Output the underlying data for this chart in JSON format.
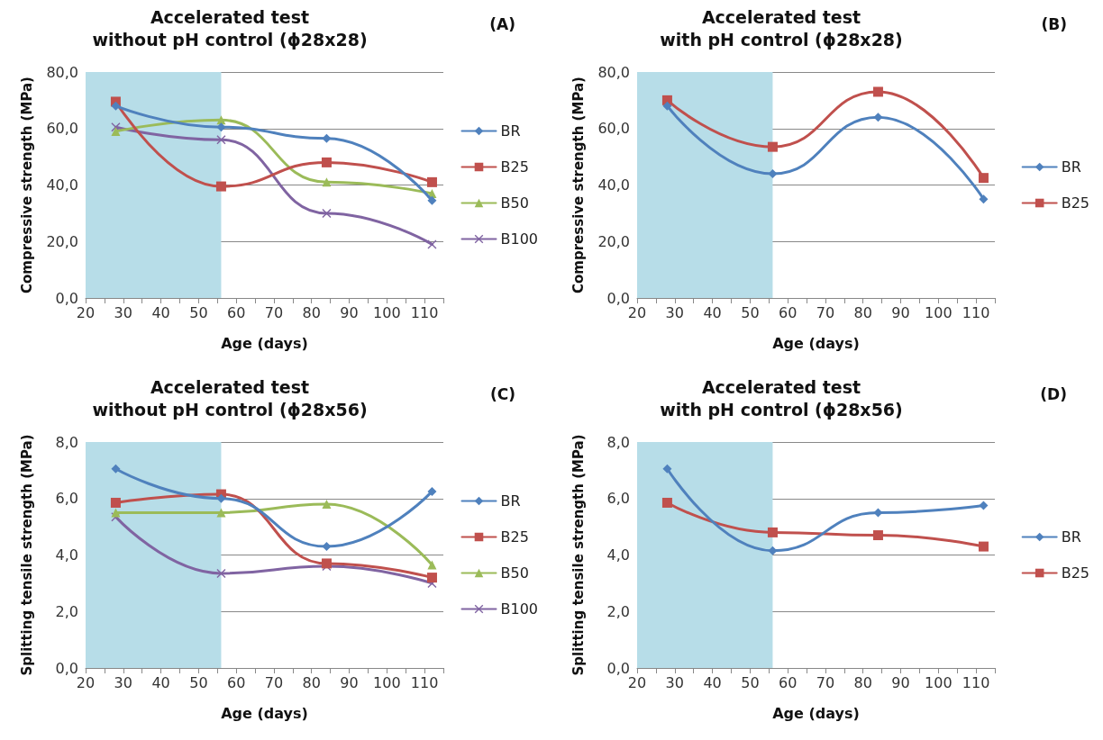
{
  "chart_data": [
    {
      "type": "line",
      "title": "Accelerated test",
      "subtitle": "without pH control (ϕ28x28)",
      "annotations": [
        "(A)"
      ],
      "xlabel": "Age (days)",
      "ylabel": "Compressive strength (MPa)",
      "x": [
        28,
        56,
        84,
        112
      ],
      "xlim": [
        20,
        115
      ],
      "xticks": [
        20,
        {
          "value": 25,
          "label": null
        },
        30,
        {
          "value": 35,
          "label": null
        },
        40,
        {
          "value": 45,
          "label": null
        },
        50,
        {
          "value": 55,
          "label": null
        },
        60,
        {
          "value": 65,
          "label": null
        },
        70,
        {
          "value": 75,
          "label": null
        },
        80,
        {
          "value": 85,
          "label": null
        },
        90,
        {
          "value": 95,
          "label": null
        },
        100,
        {
          "value": 105,
          "label": null
        },
        110,
        {
          "value": 115,
          "label": null
        }
      ],
      "ylim": [
        0,
        80
      ],
      "yticks": [
        {
          "value": 0,
          "label": "0,0"
        },
        {
          "value": 20,
          "label": "20,0"
        },
        {
          "value": 40,
          "label": "40,0"
        },
        {
          "value": 60,
          "label": "60,0"
        },
        {
          "value": 80,
          "label": "80,0"
        }
      ],
      "grid": "y",
      "legend": "right",
      "bands": [
        {
          "axis": "x",
          "from": 20,
          "to": 56,
          "color": "#b7dde8"
        }
      ],
      "series": [
        {
          "name": "BR",
          "color": "#4f81bd",
          "marker": "diamond",
          "values": [
            68,
            60.5,
            56.5,
            34.5
          ]
        },
        {
          "name": "B25",
          "color": "#c0504d",
          "marker": "square",
          "values": [
            69.5,
            39.5,
            48,
            41
          ]
        },
        {
          "name": "B50",
          "color": "#9bbb59",
          "marker": "triangle",
          "values": [
            59,
            63,
            41,
            37
          ]
        },
        {
          "name": "B100",
          "color": "#8064a2",
          "marker": "cross",
          "values": [
            60.5,
            56,
            30,
            19
          ]
        }
      ]
    },
    {
      "type": "line",
      "title": "Accelerated test",
      "subtitle": "with pH control (ϕ28x28)",
      "annotations": [
        "(B)"
      ],
      "xlabel": "Age (days)",
      "ylabel": "Compressive strength (MPa)",
      "x": [
        28,
        56,
        84,
        112
      ],
      "xlim": [
        20,
        115
      ],
      "xticks": [
        20,
        {
          "value": 25,
          "label": null
        },
        30,
        {
          "value": 35,
          "label": null
        },
        40,
        {
          "value": 45,
          "label": null
        },
        50,
        {
          "value": 55,
          "label": null
        },
        60,
        {
          "value": 65,
          "label": null
        },
        70,
        {
          "value": 75,
          "label": null
        },
        80,
        {
          "value": 85,
          "label": null
        },
        90,
        {
          "value": 95,
          "label": null
        },
        100,
        {
          "value": 105,
          "label": null
        },
        110,
        {
          "value": 115,
          "label": null
        }
      ],
      "ylim": [
        0,
        80
      ],
      "yticks": [
        {
          "value": 0,
          "label": "0,0"
        },
        {
          "value": 20,
          "label": "20,0"
        },
        {
          "value": 40,
          "label": "40,0"
        },
        {
          "value": 60,
          "label": "60,0"
        },
        {
          "value": 80,
          "label": "80,0"
        }
      ],
      "grid": "y",
      "legend": "right",
      "bands": [
        {
          "axis": "x",
          "from": 20,
          "to": 56,
          "color": "#b7dde8"
        }
      ],
      "series": [
        {
          "name": "BR",
          "color": "#4f81bd",
          "marker": "diamond",
          "values": [
            68,
            44,
            64,
            35
          ]
        },
        {
          "name": "B25",
          "color": "#c0504d",
          "marker": "square",
          "values": [
            70,
            53.5,
            73,
            42.5
          ]
        }
      ]
    },
    {
      "type": "line",
      "title": "Accelerated test",
      "subtitle": "without pH control (ϕ28x56)",
      "annotations": [
        "(C)"
      ],
      "xlabel": "Age (days)",
      "ylabel": "Splitting tensile strength (MPa)",
      "x": [
        28,
        56,
        84,
        112
      ],
      "xlim": [
        20,
        115
      ],
      "xticks": [
        20,
        {
          "value": 25,
          "label": null
        },
        30,
        {
          "value": 35,
          "label": null
        },
        40,
        {
          "value": 45,
          "label": null
        },
        50,
        {
          "value": 55,
          "label": null
        },
        60,
        {
          "value": 65,
          "label": null
        },
        70,
        {
          "value": 75,
          "label": null
        },
        80,
        {
          "value": 85,
          "label": null
        },
        90,
        {
          "value": 95,
          "label": null
        },
        100,
        {
          "value": 105,
          "label": null
        },
        110,
        {
          "value": 115,
          "label": null
        }
      ],
      "ylim": [
        0,
        8
      ],
      "yticks": [
        {
          "value": 0,
          "label": "0,0"
        },
        {
          "value": 2,
          "label": "2,0"
        },
        {
          "value": 4,
          "label": "4,0"
        },
        {
          "value": 6,
          "label": "6,0"
        },
        {
          "value": 8,
          "label": "8,0"
        }
      ],
      "grid": "y",
      "legend": "right",
      "bands": [
        {
          "axis": "x",
          "from": 20,
          "to": 56,
          "color": "#b7dde8"
        }
      ],
      "series": [
        {
          "name": "BR",
          "color": "#4f81bd",
          "marker": "diamond",
          "values": [
            7.05,
            6.0,
            4.3,
            6.25
          ]
        },
        {
          "name": "B25",
          "color": "#c0504d",
          "marker": "square",
          "values": [
            5.85,
            6.15,
            3.7,
            3.2
          ]
        },
        {
          "name": "B50",
          "color": "#9bbb59",
          "marker": "triangle",
          "values": [
            5.5,
            5.5,
            5.8,
            3.65
          ]
        },
        {
          "name": "B100",
          "color": "#8064a2",
          "marker": "cross",
          "values": [
            5.35,
            3.35,
            3.6,
            3.0
          ]
        }
      ]
    },
    {
      "type": "line",
      "title": "Accelerated test",
      "subtitle": "with pH control (ϕ28x56)",
      "annotations": [
        "(D)"
      ],
      "xlabel": "Age (days)",
      "ylabel": "Splitting tensile strength (MPa)",
      "x": [
        28,
        56,
        84,
        112
      ],
      "xlim": [
        20,
        115
      ],
      "xticks": [
        20,
        {
          "value": 25,
          "label": null
        },
        30,
        {
          "value": 35,
          "label": null
        },
        40,
        {
          "value": 45,
          "label": null
        },
        50,
        {
          "value": 55,
          "label": null
        },
        60,
        {
          "value": 65,
          "label": null
        },
        70,
        {
          "value": 75,
          "label": null
        },
        80,
        {
          "value": 85,
          "label": null
        },
        90,
        {
          "value": 95,
          "label": null
        },
        100,
        {
          "value": 105,
          "label": null
        },
        110,
        {
          "value": 115,
          "label": null
        }
      ],
      "ylim": [
        0,
        8
      ],
      "yticks": [
        {
          "value": 0,
          "label": "0,0"
        },
        {
          "value": 2,
          "label": "2,0"
        },
        {
          "value": 4,
          "label": "4,0"
        },
        {
          "value": 6,
          "label": "6,0"
        },
        {
          "value": 8,
          "label": "8,0"
        }
      ],
      "grid": "y",
      "legend": "right",
      "bands": [
        {
          "axis": "x",
          "from": 20,
          "to": 56,
          "color": "#b7dde8"
        }
      ],
      "series": [
        {
          "name": "BR",
          "color": "#4f81bd",
          "marker": "diamond",
          "values": [
            7.05,
            4.15,
            5.5,
            5.75
          ]
        },
        {
          "name": "B25",
          "color": "#c0504d",
          "marker": "square",
          "values": [
            5.85,
            4.8,
            4.7,
            4.3
          ]
        }
      ]
    }
  ]
}
